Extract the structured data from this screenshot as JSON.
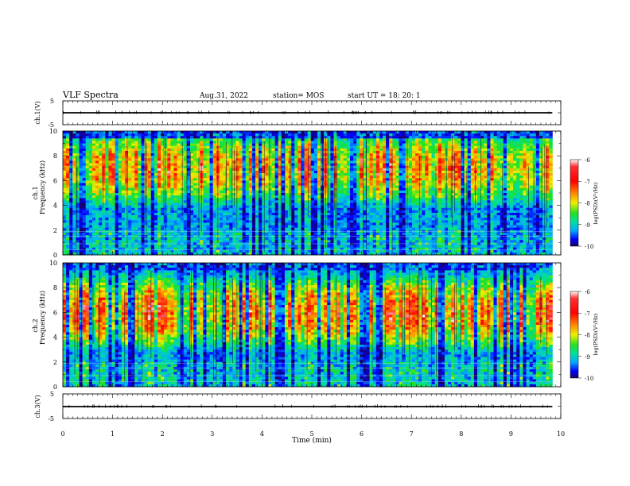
{
  "header": {
    "title": "VLF Spectra",
    "date": "Aug.31, 2022",
    "station": "station= MOS",
    "start": "start  UT =   18: 20: 1"
  },
  "panels": {
    "ch1_wave": {
      "ylabel": "ch.1(V)",
      "ticks": [
        "5",
        "-5"
      ]
    },
    "ch1_spec": {
      "ylabel_top": "ch.1",
      "ylabel": "Frequency (kHz)"
    },
    "ch2_spec": {
      "ylabel_top": "ch.2",
      "ylabel": "Frequency (kHz)"
    },
    "ch3_wave": {
      "ylabel": "ch.3(V)",
      "ticks": [
        "5",
        "-5"
      ]
    }
  },
  "colorbar": {
    "label": "log(PSD)(V²/Hz)",
    "ticks": [
      "-6",
      "-7",
      "-8",
      "-9",
      "-10"
    ]
  },
  "xaxis": {
    "label": "Time  (min)",
    "ticks": [
      "0",
      "1",
      "2",
      "3",
      "4",
      "5",
      "6",
      "7",
      "8",
      "9",
      "10"
    ]
  },
  "chart_data": [
    {
      "type": "line",
      "title": "VLF Spectra",
      "ylabel": "ch.1(V)",
      "xlabel": "Time  (min)",
      "xlim": [
        0,
        10
      ],
      "ylim": [
        -5,
        5
      ],
      "series": [
        {
          "x": [
            0,
            9.83
          ],
          "values": [
            0,
            0
          ]
        }
      ],
      "yticks": [
        5,
        -5
      ]
    },
    {
      "type": "heatmap",
      "channel": "ch.1",
      "ylabel": "Frequency (kHz)",
      "xlim": [
        0,
        10
      ],
      "ylim": [
        0,
        10
      ],
      "data_extent_min": 9.83,
      "yticks": [
        0,
        2,
        4,
        6,
        8,
        10
      ],
      "colorbar_label": "log(PSD)(V²/Hz)",
      "clim": [
        -10,
        -6
      ],
      "colormap": [
        "#1a0066",
        "#0000ff",
        "#00a8ff",
        "#00e0a0",
        "#20e020",
        "#f0f000",
        "#ff8000",
        "#ff0000",
        "#ffffff"
      ],
      "dominant_band_khz": [
        5,
        9
      ],
      "low_band_khz": [
        0,
        2
      ]
    },
    {
      "type": "heatmap",
      "channel": "ch.2",
      "ylabel": "Frequency (kHz)",
      "xlim": [
        0,
        10
      ],
      "ylim": [
        0,
        10
      ],
      "data_extent_min": 9.83,
      "yticks": [
        0,
        2,
        4,
        6,
        8,
        10
      ],
      "colorbar_label": "log(PSD)(V²/Hz)",
      "clim": [
        -10,
        -6
      ],
      "dominant_band_khz": [
        4,
        8
      ],
      "low_band_khz": [
        0,
        2
      ]
    },
    {
      "type": "line",
      "ylabel": "ch.3(V)",
      "xlabel": "Time  (min)",
      "xlim": [
        0,
        10
      ],
      "ylim": [
        -5,
        5
      ],
      "series": [
        {
          "x": [
            0,
            9.83
          ],
          "values": [
            0,
            0
          ]
        }
      ],
      "yticks": [
        5,
        -5
      ]
    }
  ]
}
